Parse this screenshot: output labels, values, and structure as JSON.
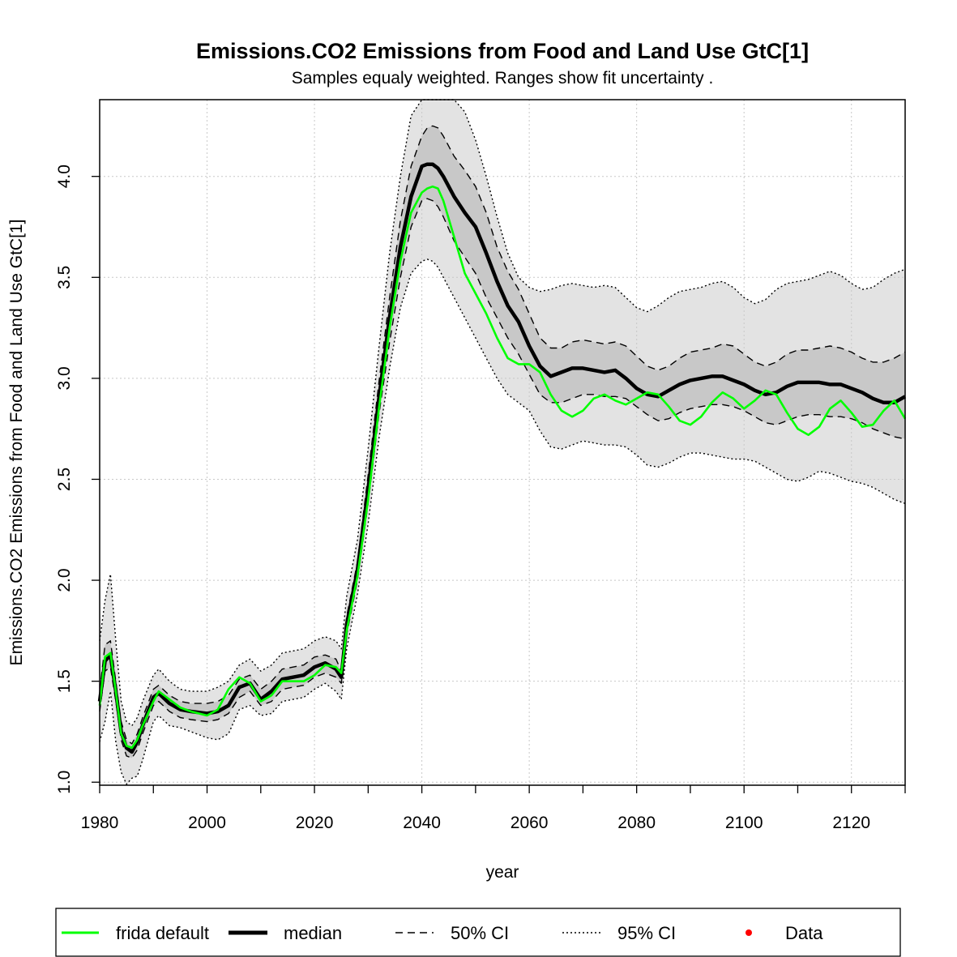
{
  "chart_data": {
    "type": "line",
    "title": "Emissions.CO2 Emissions from Food and Land Use GtC[1]",
    "subtitle": "Samples equaly weighted. Ranges show  fit uncertainty .",
    "xlabel": "year",
    "ylabel": "Emissions.CO2 Emissions from Food and Land Use GtC[1]",
    "xlim": [
      1980,
      2130
    ],
    "ylim": [
      0.985,
      4.38
    ],
    "x_ticks": [
      1980,
      2000,
      2020,
      2040,
      2060,
      2080,
      2100,
      2120
    ],
    "y_ticks": [
      1.0,
      1.5,
      2.0,
      2.5,
      3.0,
      3.5,
      4.0
    ],
    "y_tick_labels": [
      "1.0",
      "1.5",
      "2.0",
      "2.5",
      "3.0",
      "3.5",
      "4.0"
    ],
    "grid": true,
    "legend_position": "bottom",
    "legend": [
      {
        "label": "frida default",
        "style": "green-line"
      },
      {
        "label": "median",
        "style": "thick-black-line"
      },
      {
        "label": "50% CI",
        "style": "dashed-line"
      },
      {
        "label": "95% CI",
        "style": "dotted-line"
      },
      {
        "label": "Data",
        "style": "red-point"
      }
    ],
    "colors": {
      "frida_default": "#00ff00",
      "median": "#000000",
      "ci95_fill": "#e3e3e3",
      "ci50_fill": "#c8c8c8",
      "data": "#ff0000",
      "grid": "#c8c8c8"
    },
    "x": [
      1980,
      1981,
      1982,
      1983,
      1984,
      1985,
      1986,
      1987,
      1988,
      1990,
      1991,
      1993,
      1995,
      1997,
      2000,
      2002,
      2004,
      2006,
      2008,
      2010,
      2012,
      2014,
      2016,
      2018,
      2020,
      2022,
      2024,
      2025,
      2026,
      2028,
      2030,
      2032,
      2034,
      2036,
      2038,
      2040,
      2041,
      2042,
      2043,
      2044,
      2046,
      2048,
      2050,
      2052,
      2054,
      2056,
      2058,
      2060,
      2062,
      2064,
      2066,
      2068,
      2070,
      2072,
      2074,
      2076,
      2078,
      2080,
      2082,
      2084,
      2086,
      2088,
      2090,
      2092,
      2094,
      2096,
      2098,
      2100,
      2102,
      2104,
      2106,
      2108,
      2110,
      2112,
      2114,
      2116,
      2118,
      2120,
      2122,
      2124,
      2126,
      2128,
      2130
    ],
    "series": [
      {
        "name": "median",
        "values": [
          1.4,
          1.6,
          1.63,
          1.45,
          1.25,
          1.17,
          1.15,
          1.2,
          1.28,
          1.42,
          1.44,
          1.39,
          1.36,
          1.35,
          1.34,
          1.35,
          1.38,
          1.47,
          1.49,
          1.41,
          1.45,
          1.51,
          1.52,
          1.53,
          1.57,
          1.59,
          1.56,
          1.52,
          1.78,
          2.05,
          2.45,
          2.9,
          3.3,
          3.65,
          3.9,
          4.05,
          4.06,
          4.06,
          4.04,
          4.0,
          3.9,
          3.82,
          3.75,
          3.62,
          3.48,
          3.36,
          3.28,
          3.16,
          3.06,
          3.01,
          3.03,
          3.05,
          3.05,
          3.04,
          3.03,
          3.04,
          3.0,
          2.95,
          2.92,
          2.91,
          2.94,
          2.97,
          2.99,
          3.0,
          3.01,
          3.01,
          2.99,
          2.97,
          2.94,
          2.92,
          2.93,
          2.96,
          2.98,
          2.98,
          2.98,
          2.97,
          2.97,
          2.95,
          2.93,
          2.9,
          2.88,
          2.88,
          2.91
        ]
      },
      {
        "name": "frida default",
        "values": [
          1.38,
          1.62,
          1.64,
          1.45,
          1.24,
          1.18,
          1.17,
          1.21,
          1.28,
          1.4,
          1.45,
          1.41,
          1.37,
          1.35,
          1.33,
          1.36,
          1.46,
          1.52,
          1.49,
          1.4,
          1.43,
          1.5,
          1.5,
          1.5,
          1.53,
          1.58,
          1.57,
          1.54,
          1.75,
          2.02,
          2.4,
          2.85,
          3.25,
          3.58,
          3.82,
          3.92,
          3.94,
          3.95,
          3.94,
          3.88,
          3.7,
          3.52,
          3.42,
          3.32,
          3.2,
          3.1,
          3.07,
          3.07,
          3.03,
          2.92,
          2.84,
          2.81,
          2.84,
          2.9,
          2.92,
          2.89,
          2.87,
          2.9,
          2.93,
          2.92,
          2.86,
          2.79,
          2.77,
          2.81,
          2.88,
          2.93,
          2.9,
          2.85,
          2.89,
          2.94,
          2.92,
          2.83,
          2.75,
          2.72,
          2.76,
          2.85,
          2.89,
          2.83,
          2.76,
          2.77,
          2.84,
          2.89,
          2.8
        ]
      },
      {
        "name": "50% CI lower",
        "values": [
          1.35,
          1.55,
          1.57,
          1.4,
          1.21,
          1.13,
          1.12,
          1.16,
          1.24,
          1.38,
          1.4,
          1.35,
          1.32,
          1.31,
          1.3,
          1.31,
          1.34,
          1.42,
          1.45,
          1.38,
          1.4,
          1.46,
          1.47,
          1.48,
          1.52,
          1.54,
          1.52,
          1.49,
          1.73,
          2.0,
          2.38,
          2.82,
          3.18,
          3.5,
          3.75,
          3.88,
          3.89,
          3.88,
          3.85,
          3.8,
          3.68,
          3.6,
          3.52,
          3.4,
          3.3,
          3.2,
          3.12,
          3.02,
          2.92,
          2.88,
          2.88,
          2.9,
          2.92,
          2.92,
          2.91,
          2.91,
          2.9,
          2.86,
          2.82,
          2.79,
          2.8,
          2.83,
          2.85,
          2.86,
          2.87,
          2.87,
          2.86,
          2.84,
          2.81,
          2.78,
          2.77,
          2.79,
          2.81,
          2.82,
          2.82,
          2.81,
          2.81,
          2.8,
          2.78,
          2.75,
          2.73,
          2.71,
          2.7
        ]
      },
      {
        "name": "50% CI upper",
        "values": [
          1.45,
          1.68,
          1.7,
          1.5,
          1.3,
          1.21,
          1.19,
          1.24,
          1.32,
          1.46,
          1.48,
          1.43,
          1.4,
          1.39,
          1.39,
          1.4,
          1.43,
          1.51,
          1.53,
          1.46,
          1.5,
          1.56,
          1.57,
          1.58,
          1.62,
          1.63,
          1.61,
          1.55,
          1.82,
          2.09,
          2.52,
          2.98,
          3.4,
          3.78,
          4.05,
          4.2,
          4.24,
          4.25,
          4.24,
          4.2,
          4.1,
          4.03,
          3.95,
          3.82,
          3.65,
          3.53,
          3.44,
          3.32,
          3.2,
          3.15,
          3.15,
          3.18,
          3.19,
          3.18,
          3.17,
          3.18,
          3.16,
          3.11,
          3.06,
          3.04,
          3.06,
          3.1,
          3.13,
          3.14,
          3.15,
          3.17,
          3.16,
          3.12,
          3.08,
          3.06,
          3.08,
          3.12,
          3.14,
          3.14,
          3.15,
          3.16,
          3.15,
          3.13,
          3.1,
          3.08,
          3.08,
          3.1,
          3.13
        ]
      },
      {
        "name": "95% CI lower",
        "values": [
          1.2,
          1.3,
          1.45,
          1.2,
          1.05,
          0.99,
          1.02,
          1.03,
          1.11,
          1.3,
          1.33,
          1.28,
          1.27,
          1.25,
          1.22,
          1.21,
          1.24,
          1.36,
          1.38,
          1.33,
          1.34,
          1.4,
          1.41,
          1.42,
          1.46,
          1.49,
          1.45,
          1.41,
          1.66,
          1.93,
          2.28,
          2.7,
          3.05,
          3.35,
          3.52,
          3.58,
          3.59,
          3.58,
          3.55,
          3.5,
          3.4,
          3.3,
          3.2,
          3.1,
          3.0,
          2.92,
          2.88,
          2.84,
          2.74,
          2.66,
          2.65,
          2.67,
          2.69,
          2.68,
          2.67,
          2.67,
          2.66,
          2.62,
          2.57,
          2.56,
          2.58,
          2.61,
          2.63,
          2.63,
          2.62,
          2.61,
          2.6,
          2.6,
          2.59,
          2.56,
          2.53,
          2.5,
          2.49,
          2.51,
          2.54,
          2.53,
          2.51,
          2.49,
          2.48,
          2.46,
          2.43,
          2.4,
          2.38
        ]
      },
      {
        "name": "95% CI upper",
        "values": [
          1.7,
          1.9,
          2.03,
          1.7,
          1.4,
          1.3,
          1.28,
          1.32,
          1.4,
          1.53,
          1.56,
          1.5,
          1.46,
          1.45,
          1.45,
          1.47,
          1.5,
          1.58,
          1.61,
          1.55,
          1.58,
          1.64,
          1.65,
          1.66,
          1.7,
          1.72,
          1.7,
          1.66,
          1.92,
          2.2,
          2.65,
          3.15,
          3.62,
          4.0,
          4.3,
          4.48,
          4.52,
          4.54,
          4.53,
          4.5,
          4.42,
          4.32,
          4.18,
          4.0,
          3.8,
          3.62,
          3.5,
          3.45,
          3.43,
          3.44,
          3.46,
          3.47,
          3.46,
          3.45,
          3.46,
          3.45,
          3.4,
          3.35,
          3.33,
          3.36,
          3.4,
          3.43,
          3.44,
          3.45,
          3.47,
          3.48,
          3.45,
          3.4,
          3.37,
          3.39,
          3.44,
          3.47,
          3.48,
          3.49,
          3.51,
          3.53,
          3.51,
          3.47,
          3.44,
          3.45,
          3.49,
          3.52,
          3.54
        ]
      }
    ]
  }
}
